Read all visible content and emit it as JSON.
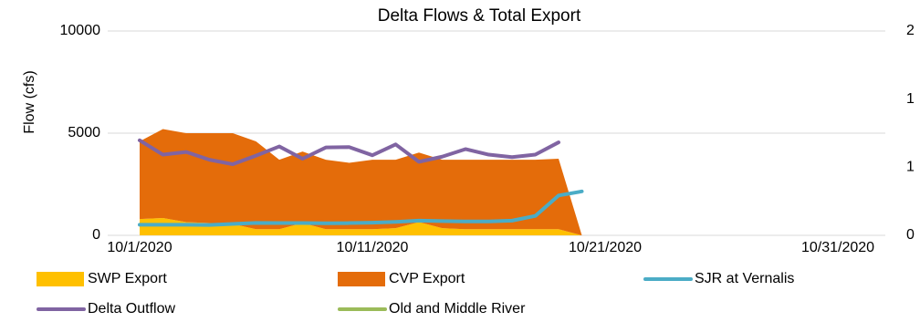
{
  "chart_data": {
    "type": "line",
    "title": "Delta Flows & Total Export",
    "y_label": "Flow (cfs)",
    "x": [
      "10/1/2020",
      "10/2/2020",
      "10/3/2020",
      "10/4/2020",
      "10/5/2020",
      "10/6/2020",
      "10/7/2020",
      "10/8/2020",
      "10/9/2020",
      "10/10/2020",
      "10/11/2020",
      "10/12/2020",
      "10/13/2020",
      "10/14/2020",
      "10/15/2020",
      "10/16/2020",
      "10/17/2020",
      "10/18/2020",
      "10/19/2020",
      "10/20/2020"
    ],
    "xticks": [
      "10/1/2020",
      "10/11/2020",
      "10/21/2020",
      "10/31/2020"
    ],
    "ylim": [
      0,
      10000
    ],
    "yticks": [
      0,
      5000,
      10000
    ],
    "y2lim": [
      0,
      2
    ],
    "y2ticks": [
      0,
      {
        "value": 0.667,
        "label": "1"
      },
      {
        "value": 1.333,
        "label": "1"
      },
      2
    ],
    "grid": true,
    "series": [
      {
        "name": "SWP Export",
        "type": "area",
        "color": "#ffc000",
        "values": [
          800,
          850,
          650,
          600,
          550,
          300,
          300,
          600,
          300,
          300,
          300,
          350,
          650,
          350,
          300,
          300,
          300,
          300,
          300,
          0
        ]
      },
      {
        "name": "CVP Export",
        "type": "area",
        "color": "#e46c0a",
        "values": [
          3800,
          4350,
          4350,
          4400,
          4450,
          4300,
          3400,
          3500,
          3400,
          3250,
          3400,
          3350,
          3400,
          3350,
          3400,
          3400,
          3400,
          3400,
          3450,
          0
        ]
      },
      {
        "name": "SJR at Vernalis",
        "type": "line",
        "color": "#4bacc6",
        "values": [
          520,
          520,
          520,
          510,
          560,
          610,
          600,
          600,
          590,
          600,
          620,
          660,
          720,
          700,
          680,
          680,
          720,
          950,
          1950,
          2150
        ]
      },
      {
        "name": "Delta Outflow",
        "type": "line",
        "color": "#8064a2",
        "values": [
          4650,
          3950,
          4080,
          3700,
          3480,
          3900,
          4350,
          3750,
          4300,
          4320,
          3920,
          4450,
          3600,
          3850,
          4220,
          3950,
          3830,
          3950,
          4550,
          null
        ]
      },
      {
        "name": "Old and Middle River",
        "type": "line",
        "color": "#9bbb59",
        "values": [
          null,
          null,
          null,
          null,
          null,
          null,
          null,
          null,
          null,
          null,
          null,
          null,
          null,
          null,
          null,
          null,
          null,
          null,
          null,
          null
        ]
      }
    ]
  }
}
